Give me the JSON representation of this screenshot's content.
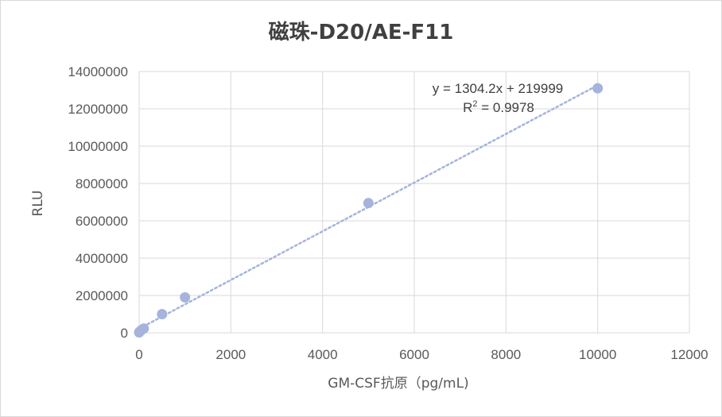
{
  "chart_data": {
    "type": "scatter",
    "title": "磁珠-D20/AE-F11",
    "xlabel": "GM-CSF抗原（pg/mL)",
    "ylabel": "RLU",
    "xlim": [
      0,
      12000
    ],
    "ylim": [
      0,
      14000000
    ],
    "xticks": [
      0,
      2000,
      4000,
      6000,
      8000,
      10000,
      12000
    ],
    "yticks": [
      0,
      2000000,
      4000000,
      6000000,
      8000000,
      10000000,
      12000000,
      14000000
    ],
    "grid": true,
    "series": [
      {
        "points": [
          {
            "x": 0,
            "y": 20000
          },
          {
            "x": 10,
            "y": 60000
          },
          {
            "x": 50,
            "y": 150000
          },
          {
            "x": 100,
            "y": 230000
          },
          {
            "x": 500,
            "y": 1000000
          },
          {
            "x": 1000,
            "y": 1900000
          },
          {
            "x": 5000,
            "y": 6950000
          },
          {
            "x": 10000,
            "y": 13100000
          }
        ],
        "color": "#a5b3dd"
      }
    ],
    "trendline": {
      "type": "linear",
      "slope": 1304.2,
      "intercept": 219999,
      "color": "#a5b3dd",
      "style": "dotted",
      "equation": "y = 1304.2x + 219999",
      "r2_prefix": "R",
      "r2_sup": "2",
      "r2_suffix": " = 0.9978"
    }
  }
}
